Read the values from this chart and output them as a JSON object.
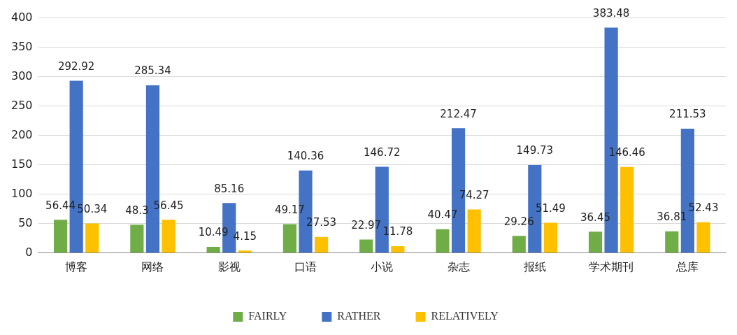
{
  "chart_data": {
    "type": "bar",
    "categories": [
      "博客",
      "网络",
      "影视",
      "口语",
      "小说",
      "杂志",
      "报纸",
      "学术期刊",
      "总库"
    ],
    "series": [
      {
        "name": "FAIRLY",
        "color": "#70ad47",
        "values": [
          56.44,
          48.3,
          10.49,
          49.17,
          22.97,
          40.47,
          29.26,
          36.45,
          36.81
        ]
      },
      {
        "name": "RATHER",
        "color": "#4472c4",
        "values": [
          292.92,
          285.34,
          85.16,
          140.36,
          146.72,
          212.47,
          149.73,
          383.48,
          211.53
        ]
      },
      {
        "name": "RELATIVELY",
        "color": "#ffc000",
        "values": [
          50.34,
          56.45,
          4.15,
          27.53,
          11.78,
          74.27,
          51.49,
          146.46,
          52.43
        ]
      }
    ],
    "ylim": [
      0,
      400
    ],
    "yticks": [
      0,
      50,
      100,
      150,
      200,
      250,
      300,
      350,
      400
    ],
    "grid": "y",
    "legend": "bottom",
    "data_labels": true
  }
}
